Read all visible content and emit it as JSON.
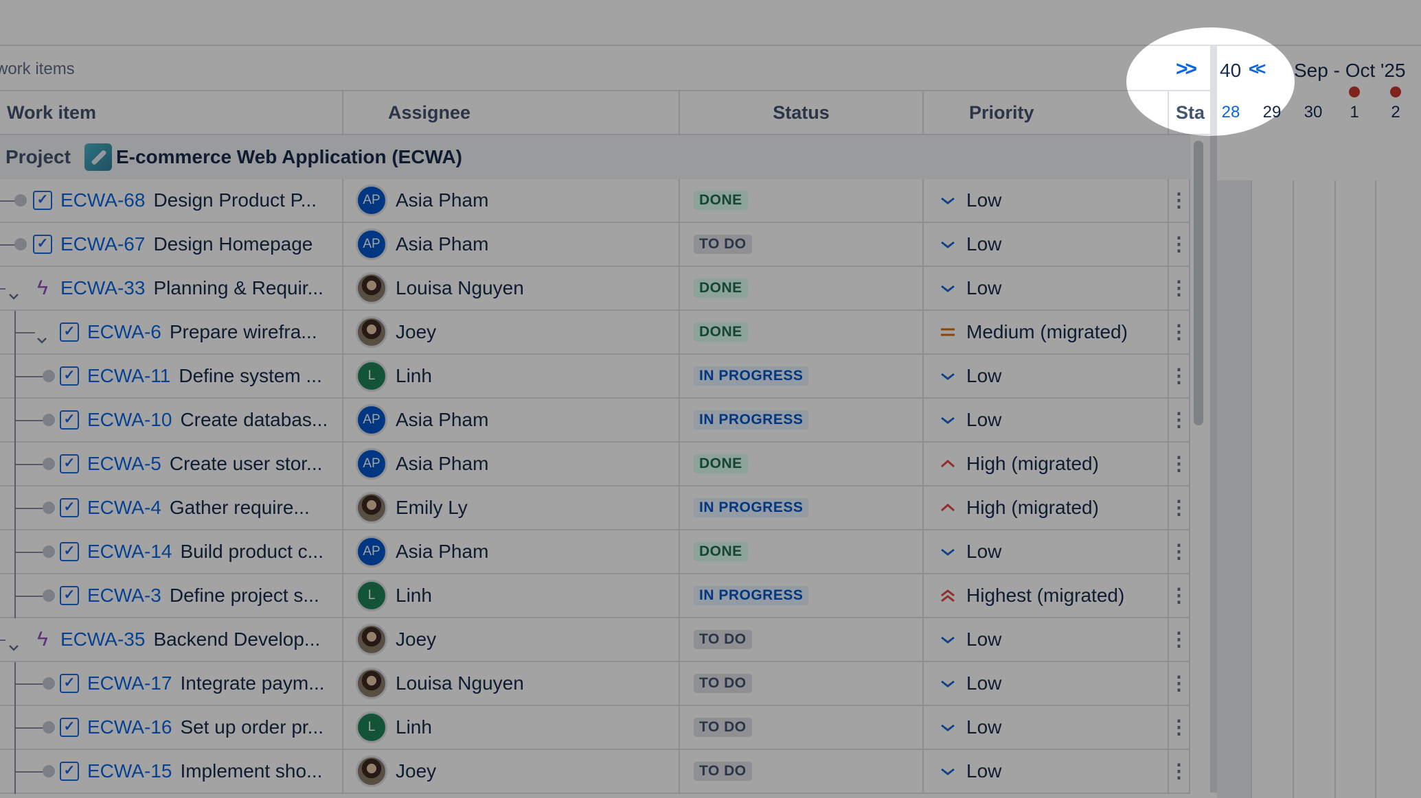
{
  "toolbar": {
    "count_text": "work items",
    "expand_icon": "double-chevron-right-icon"
  },
  "columns": {
    "work_item": "Work item",
    "assignee": "Assignee",
    "status": "Status",
    "priority": "Priority",
    "start": "Sta"
  },
  "project": {
    "label": "Project",
    "name": "E-commerce Web Application (ECWA)"
  },
  "timeline": {
    "week": "40",
    "month": "Sep - Oct '25",
    "days": [
      "28",
      "29",
      "30",
      "1",
      "2"
    ],
    "today": "28",
    "holidays": [
      "1",
      "2"
    ],
    "back_icon": "double-chevron-left-icon"
  },
  "colors": {
    "link": "#0c66e4",
    "done_bg": "#dcfff1",
    "done_fg": "#216e4e",
    "progress_bg": "#e9f2ff",
    "progress_fg": "#0055cc",
    "todo_bg": "#dfe1e6",
    "todo_fg": "#44546f",
    "holiday": "#c9372c"
  },
  "rows": [
    {
      "key": "ECWA-68",
      "title": "Design Product P...",
      "type": "task",
      "level": 0,
      "assignee": "Asia Pham",
      "initials": "AP",
      "avatar": "blue",
      "status": "DONE",
      "priority": "Low"
    },
    {
      "key": "ECWA-67",
      "title": "Design Homepage",
      "type": "task",
      "level": 0,
      "assignee": "Asia Pham",
      "initials": "AP",
      "avatar": "blue",
      "status": "TO DO",
      "priority": "Low"
    },
    {
      "key": "ECWA-33",
      "title": "Planning & Requir...",
      "type": "epic",
      "level": 0,
      "expanded": true,
      "assignee": "Louisa Nguyen",
      "avatar": "photo",
      "status": "DONE",
      "priority": "Low"
    },
    {
      "key": "ECWA-6",
      "title": "Prepare wirefra...",
      "type": "task",
      "level": 1,
      "expanded": true,
      "assignee": "Joey",
      "avatar": "photo",
      "status": "DONE",
      "priority": "Medium (migrated)"
    },
    {
      "key": "ECWA-11",
      "title": "Define system ...",
      "type": "task",
      "level": 1,
      "assignee": "Linh",
      "initials": "L",
      "avatar": "green",
      "status": "IN PROGRESS",
      "priority": "Low"
    },
    {
      "key": "ECWA-10",
      "title": "Create databas...",
      "type": "task",
      "level": 1,
      "assignee": "Asia Pham",
      "initials": "AP",
      "avatar": "blue",
      "status": "IN PROGRESS",
      "priority": "Low"
    },
    {
      "key": "ECWA-5",
      "title": "Create user stor...",
      "type": "task",
      "level": 1,
      "assignee": "Asia Pham",
      "initials": "AP",
      "avatar": "blue",
      "status": "DONE",
      "priority": "High (migrated)"
    },
    {
      "key": "ECWA-4",
      "title": "Gather require...",
      "type": "task",
      "level": 1,
      "assignee": "Emily Ly",
      "avatar": "photo",
      "status": "IN PROGRESS",
      "priority": "High (migrated)"
    },
    {
      "key": "ECWA-14",
      "title": "Build product c...",
      "type": "task",
      "level": 1,
      "assignee": "Asia Pham",
      "initials": "AP",
      "avatar": "blue",
      "status": "DONE",
      "priority": "Low"
    },
    {
      "key": "ECWA-3",
      "title": "Define project s...",
      "type": "task",
      "level": 1,
      "assignee": "Linh",
      "initials": "L",
      "avatar": "green",
      "status": "IN PROGRESS",
      "priority": "Highest (migrated)"
    },
    {
      "key": "ECWA-35",
      "title": "Backend Develop...",
      "type": "epic",
      "level": 0,
      "expanded": true,
      "assignee": "Joey",
      "avatar": "photo",
      "status": "TO DO",
      "priority": "Low"
    },
    {
      "key": "ECWA-17",
      "title": "Integrate paym...",
      "type": "task",
      "level": 1,
      "assignee": "Louisa Nguyen",
      "avatar": "photo",
      "status": "TO DO",
      "priority": "Low"
    },
    {
      "key": "ECWA-16",
      "title": "Set up order pr...",
      "type": "task",
      "level": 1,
      "assignee": "Linh",
      "initials": "L",
      "avatar": "green",
      "status": "TO DO",
      "priority": "Low"
    },
    {
      "key": "ECWA-15",
      "title": "Implement sho...",
      "type": "task",
      "level": 1,
      "assignee": "Joey",
      "avatar": "photo",
      "status": "TO DO",
      "priority": "Low"
    }
  ]
}
